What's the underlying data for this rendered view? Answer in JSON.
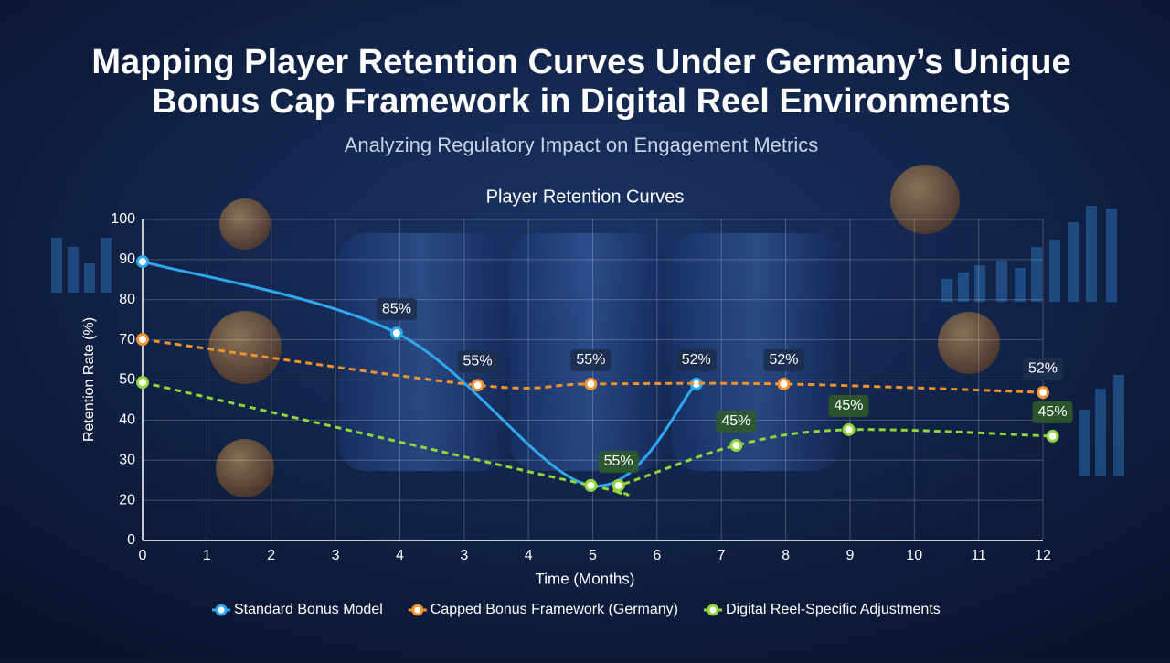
{
  "chart_data": {
    "type": "line",
    "title": "Mapping Player Retention Curves Under Germany’s Unique Bonus Cap Framework in Digital Reel Environments",
    "subtitle": "Analyzing Regulatory Impact on Engagement Metrics",
    "chart_title": "Player Retention Curves",
    "x_label": "Time (Months)",
    "y_label": "Retention Rate (%)",
    "xlim": [
      0,
      14
    ],
    "xticks": [
      0,
      1,
      2,
      3,
      4,
      {
        "value": 5,
        "label": "3"
      },
      {
        "value": 6,
        "label": "4"
      },
      {
        "value": 7,
        "label": "5"
      },
      {
        "value": 8,
        "label": "6"
      },
      {
        "value": 9,
        "label": "7"
      },
      {
        "value": 10,
        "label": "8"
      },
      {
        "value": 11,
        "label": "9"
      },
      {
        "value": 12,
        "label": "10"
      },
      {
        "value": 13,
        "label": "11"
      },
      {
        "value": 14,
        "label": "12"
      }
    ],
    "ylim": [
      0,
      8
    ],
    "yticks": [
      0,
      {
        "value": 1,
        "label": "20"
      },
      {
        "value": 2,
        "label": "30"
      },
      {
        "value": 3,
        "label": "40"
      },
      {
        "value": 4,
        "label": "50"
      },
      {
        "value": 5,
        "label": "70"
      },
      {
        "value": 6,
        "label": "80"
      },
      {
        "value": 7,
        "label": "90"
      },
      {
        "value": 8,
        "label": "100"
      }
    ],
    "grid": true,
    "series": [
      {
        "name": "Standard Bonus Model",
        "color": "#2ea8f0",
        "dashed": false,
        "x": [
          0,
          3.95,
          6.97,
          8.61
        ],
        "values": [
          6.95,
          5.17,
          1.37,
          3.9
        ]
      },
      {
        "name": "Capped Bonus Framework (Germany)",
        "color": "#f0922e",
        "dashed": true,
        "x": [
          0,
          5.21,
          6.97,
          9.97,
          14
        ],
        "values": [
          5.01,
          3.87,
          3.9,
          3.9,
          3.69
        ]
      },
      {
        "name": "Digital Reel-Specific Adjustments",
        "color": "#8ed63a",
        "dashed": true,
        "x": [
          0,
          6.97,
          7.4,
          9.23,
          10.98,
          14.15
        ],
        "values": [
          3.94,
          1.37,
          1.37,
          2.37,
          2.76,
          2.6
        ]
      }
    ],
    "annotations": [
      {
        "text": "85%",
        "x": 3.95,
        "y": 5.17,
        "color": "#2ea8f0"
      },
      {
        "text": "55%",
        "x": 5.21,
        "y": 3.87,
        "color": "#f0922e"
      },
      {
        "text": "55%",
        "x": 6.97,
        "y": 3.9,
        "color": "#f0922e"
      },
      {
        "text": "52%",
        "x": 8.61,
        "y": 3.9,
        "color": "#2ea8f0"
      },
      {
        "text": "52%",
        "x": 9.97,
        "y": 3.9,
        "color": "#f0922e"
      },
      {
        "text": "52%",
        "x": 14,
        "y": 3.69,
        "color": "#f0922e"
      },
      {
        "text": "55%",
        "x": 7.4,
        "y": 1.37,
        "color": "#8ed63a"
      },
      {
        "text": "45%",
        "x": 9.23,
        "y": 2.37,
        "color": "#8ed63a"
      },
      {
        "text": "45%",
        "x": 10.98,
        "y": 2.76,
        "color": "#8ed63a"
      },
      {
        "text": "45%",
        "x": 14.15,
        "y": 2.6,
        "color": "#8ed63a"
      }
    ]
  }
}
